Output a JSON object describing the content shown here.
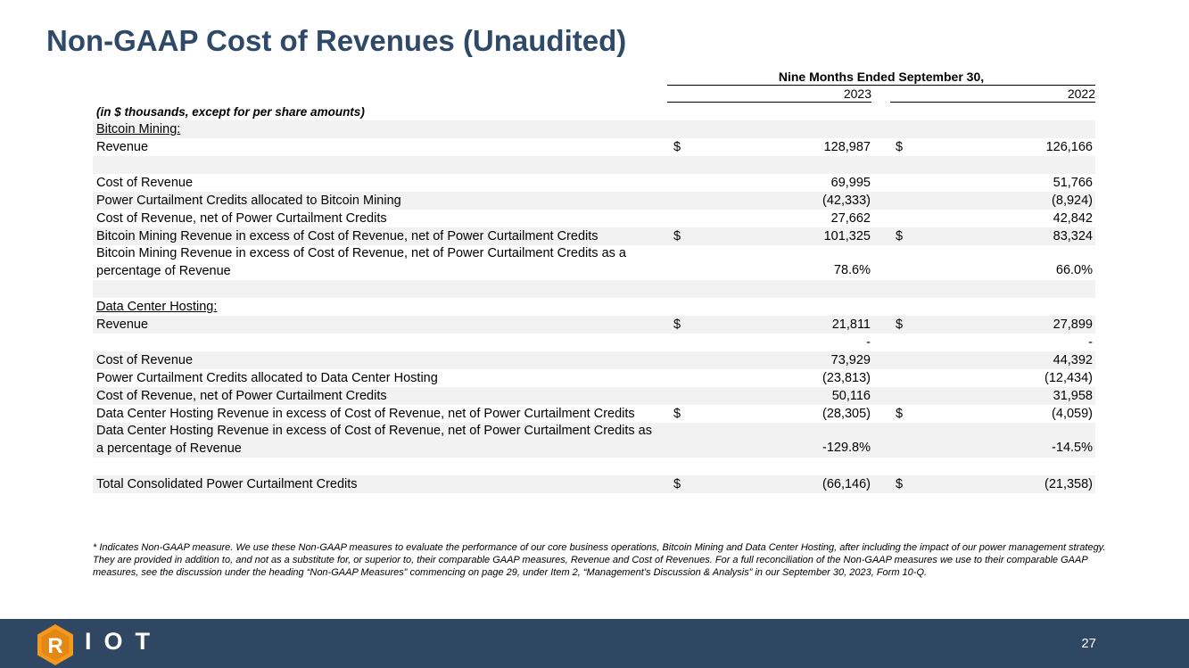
{
  "title": "Non-GAAP Cost of Revenues (Unaudited)",
  "period_header": "Nine Months Ended September 30,",
  "year_a": "2023",
  "year_b": "2022",
  "units_note": "(in $ thousands, except for per share amounts)",
  "rows": [
    {
      "label": "Bitcoin Mining:",
      "cur1": "",
      "val1": "",
      "cur2": "",
      "val2": ""
    },
    {
      "label": "Revenue",
      "cur1": "$",
      "val1": "128,987",
      "cur2": "$",
      "val2": "126,166"
    },
    {
      "label": "",
      "cur1": "",
      "val1": "",
      "cur2": "",
      "val2": ""
    },
    {
      "label": "Cost of Revenue",
      "cur1": "",
      "val1": "69,995",
      "cur2": "",
      "val2": "51,766"
    },
    {
      "label": "Power Curtailment Credits allocated to Bitcoin Mining",
      "cur1": "",
      "val1": "(42,333)",
      "cur2": "",
      "val2": "(8,924)"
    },
    {
      "label": "Cost of Revenue, net of Power Curtailment Credits",
      "cur1": "",
      "val1": "27,662",
      "cur2": "",
      "val2": "42,842"
    },
    {
      "label": "Bitcoin Mining Revenue in excess of Cost of Revenue, net of Power Curtailment Credits",
      "cur1": "$",
      "val1": "101,325",
      "cur2": "$",
      "val2": "83,324"
    },
    {
      "label": "Bitcoin Mining Revenue in excess of Cost of Revenue, net of Power Curtailment Credits as a percentage of Revenue",
      "cur1": "",
      "val1": "78.6%",
      "cur2": "",
      "val2": "66.0%"
    },
    {
      "label": "",
      "cur1": "",
      "val1": "",
      "cur2": "",
      "val2": ""
    },
    {
      "label": "Data Center Hosting:",
      "cur1": "",
      "val1": "",
      "cur2": "",
      "val2": ""
    },
    {
      "label": "Revenue",
      "cur1": "$",
      "val1": "21,811",
      "cur2": "$",
      "val2": "27,899"
    },
    {
      "label": "",
      "cur1": "",
      "val1": "-",
      "cur2": "",
      "val2": "-"
    },
    {
      "label": "Cost of Revenue",
      "cur1": "",
      "val1": "73,929",
      "cur2": "",
      "val2": "44,392"
    },
    {
      "label": "Power Curtailment Credits allocated to Data Center Hosting",
      "cur1": "",
      "val1": "(23,813)",
      "cur2": "",
      "val2": "(12,434)"
    },
    {
      "label": "Cost of Revenue, net of Power Curtailment Credits",
      "cur1": "",
      "val1": "50,116",
      "cur2": "",
      "val2": "31,958"
    },
    {
      "label": "Data Center Hosting Revenue in excess of Cost of Revenue, net of Power Curtailment Credits",
      "cur1": "$",
      "val1": "(28,305)",
      "cur2": "$",
      "val2": "(4,059)"
    },
    {
      "label": "Data Center Hosting Revenue in excess of Cost of Revenue, net of Power Curtailment Credits as a percentage of Revenue",
      "cur1": "",
      "val1": "-129.8%",
      "cur2": "",
      "val2": "-14.5%"
    },
    {
      "label": "",
      "cur1": "",
      "val1": "",
      "cur2": "",
      "val2": ""
    },
    {
      "label": "Total Consolidated Power Curtailment Credits",
      "cur1": "$",
      "val1": "(66,146)",
      "cur2": "$",
      "val2": "(21,358)"
    }
  ],
  "footnote": "* Indicates Non-GAAP measure. We use these Non-GAAP measures to evaluate the performance of our core business operations, Bitcoin Mining and Data Center Hosting, after including the impact of our power management strategy. They are provided in addition to, and not as a substitute for, or superior to, their comparable GAAP measures, Revenue and Cost of Revenues. For a full reconciliation of the Non-GAAP measures we use to their comparable GAAP measures, see the discussion under the heading “Non-GAAP Measures” commencing on page 29, under Item 2, “Management’s Discussion & Analysis” in our September 30, 2023, Form 10-Q.",
  "footer": {
    "logo_letter": "R",
    "logo_text": "IOT",
    "page_number": "27"
  },
  "colors": {
    "title": "#2f4a68",
    "footer_bar": "#2f4763",
    "logo_orange": "#f39a1e",
    "row_shade": "#f2f2f2"
  }
}
